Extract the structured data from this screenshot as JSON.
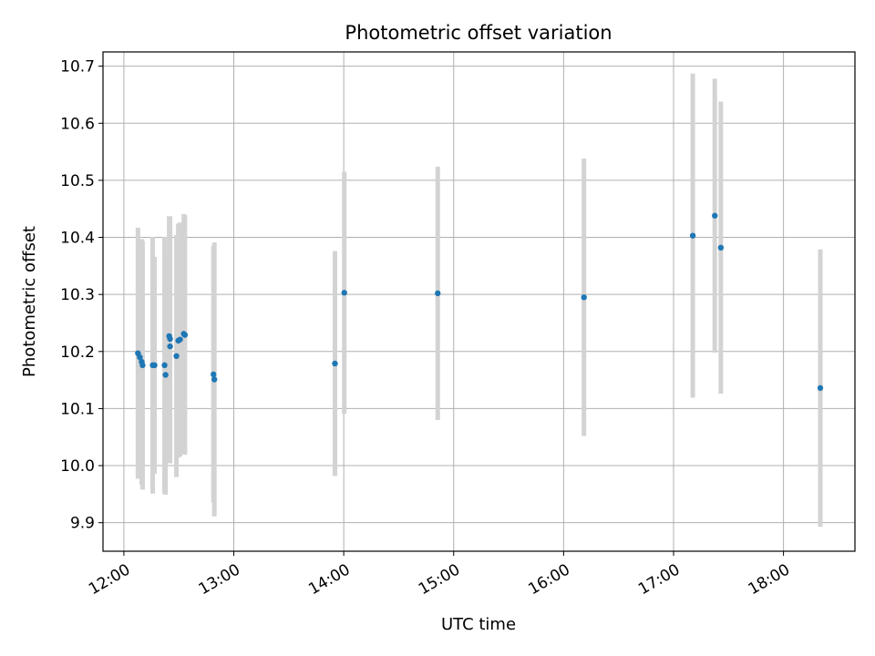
{
  "chart_data": {
    "type": "scatter",
    "title": "Photometric offset variation",
    "xlabel": "UTC time",
    "ylabel": "Photometric offset",
    "x_unit": "UTC hours",
    "xlim": [
      11.81,
      18.65
    ],
    "ylim": [
      9.85,
      10.725
    ],
    "grid": true,
    "legend": "none",
    "x_ticks": [
      {
        "value": 12,
        "label": "12:00"
      },
      {
        "value": 13,
        "label": "13:00"
      },
      {
        "value": 14,
        "label": "14:00"
      },
      {
        "value": 15,
        "label": "15:00"
      },
      {
        "value": 16,
        "label": "16:00"
      },
      {
        "value": 17,
        "label": "17:00"
      },
      {
        "value": 18,
        "label": "18:00"
      }
    ],
    "y_ticks": [
      {
        "value": 9.9,
        "label": "9.9"
      },
      {
        "value": 10.0,
        "label": "10.0"
      },
      {
        "value": 10.1,
        "label": "10.1"
      },
      {
        "value": 10.2,
        "label": "10.2"
      },
      {
        "value": 10.3,
        "label": "10.3"
      },
      {
        "value": 10.4,
        "label": "10.4"
      },
      {
        "value": 10.5,
        "label": "10.5"
      },
      {
        "value": 10.6,
        "label": "10.6"
      },
      {
        "value": 10.7,
        "label": "10.7"
      }
    ],
    "point_color": "#1f77b4",
    "errorbar_color": "#d3d3d3",
    "points": [
      {
        "time": "12:08",
        "x": 12.128,
        "y": 10.197,
        "err": 0.22
      },
      {
        "time": "12:09",
        "x": 12.145,
        "y": 10.19,
        "err": 0.195
      },
      {
        "time": "12:10",
        "x": 12.162,
        "y": 10.182,
        "err": 0.215
      },
      {
        "time": "12:10",
        "x": 12.17,
        "y": 10.176,
        "err": 0.218
      },
      {
        "time": "12:16",
        "x": 12.262,
        "y": 10.176,
        "err": 0.225
      },
      {
        "time": "12:17",
        "x": 12.279,
        "y": 10.176,
        "err": 0.19
      },
      {
        "time": "12:22",
        "x": 12.37,
        "y": 10.176,
        "err": 0.225
      },
      {
        "time": "12:23",
        "x": 12.379,
        "y": 10.159,
        "err": 0.21
      },
      {
        "time": "12:25",
        "x": 12.412,
        "y": 10.227,
        "err": 0.21
      },
      {
        "time": "12:25",
        "x": 12.42,
        "y": 10.222,
        "err": 0.215
      },
      {
        "time": "12:25",
        "x": 12.42,
        "y": 10.209,
        "err": 0.205
      },
      {
        "time": "12:29",
        "x": 12.478,
        "y": 10.192,
        "err": 0.212
      },
      {
        "time": "12:30",
        "x": 12.495,
        "y": 10.219,
        "err": 0.205
      },
      {
        "time": "12:31",
        "x": 12.511,
        "y": 10.221,
        "err": 0.205
      },
      {
        "time": "12:33",
        "x": 12.545,
        "y": 10.231,
        "err": 0.21
      },
      {
        "time": "12:33",
        "x": 12.555,
        "y": 10.229,
        "err": 0.21
      },
      {
        "time": "12:49",
        "x": 12.815,
        "y": 10.16,
        "err": 0.225
      },
      {
        "time": "12:49",
        "x": 12.823,
        "y": 10.151,
        "err": 0.24
      },
      {
        "time": "13:55",
        "x": 13.92,
        "y": 10.179,
        "err": 0.197
      },
      {
        "time": "14:00",
        "x": 14.005,
        "y": 10.303,
        "err": 0.212
      },
      {
        "time": "14:51",
        "x": 14.855,
        "y": 10.302,
        "err": 0.222
      },
      {
        "time": "16:11",
        "x": 16.185,
        "y": 10.295,
        "err": 0.243
      },
      {
        "time": "17:10",
        "x": 17.175,
        "y": 10.403,
        "err": 0.284
      },
      {
        "time": "17:22",
        "x": 17.375,
        "y": 10.438,
        "err": 0.24
      },
      {
        "time": "17:26",
        "x": 17.43,
        "y": 10.382,
        "err": 0.256
      },
      {
        "time": "18:20",
        "x": 18.335,
        "y": 10.136,
        "err": 0.243
      }
    ]
  }
}
